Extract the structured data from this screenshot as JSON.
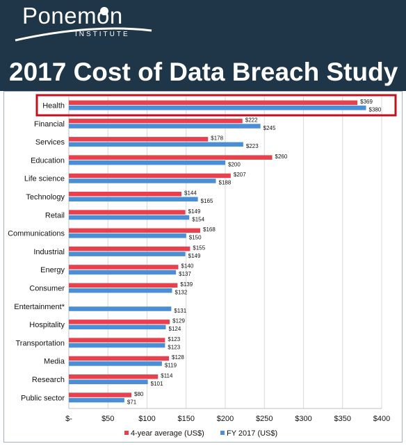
{
  "banner": {
    "logo_word": "Ponemon",
    "logo_sub": "INSTITUTE",
    "title": "2017 Cost of Data Breach Study"
  },
  "colors": {
    "banner_bg": "#1f3648",
    "series_avg": "#e8414d",
    "series_fy": "#4a8fd6",
    "highlight_box": "#c0121e"
  },
  "chart_data": {
    "type": "bar",
    "orientation": "horizontal",
    "categories": [
      "Health",
      "Financial",
      "Services",
      "Education",
      "Life science",
      "Technology",
      "Retail",
      "Communications",
      "Industrial",
      "Energy",
      "Consumer",
      "Entertainment*",
      "Hospitality",
      "Transportation",
      "Media",
      "Research",
      "Public sector"
    ],
    "series": [
      {
        "name": "4-year average (US$)",
        "values": [
          369,
          222,
          178,
          260,
          207,
          144,
          149,
          168,
          155,
          140,
          139,
          null,
          129,
          123,
          128,
          114,
          80
        ],
        "labels": [
          "$369",
          "$222",
          "$178",
          "$260",
          "$207",
          "$144",
          "$149",
          "$168",
          "$155",
          "$140",
          "$139",
          "",
          "$129",
          "$123",
          "$128",
          "$114",
          "$80"
        ]
      },
      {
        "name": "FY 2017 (US$)",
        "values": [
          380,
          245,
          223,
          200,
          188,
          165,
          154,
          150,
          149,
          137,
          132,
          131,
          124,
          123,
          119,
          101,
          71
        ],
        "labels": [
          "$380",
          "$245",
          "$223",
          "$200",
          "$188",
          "$165",
          "$154",
          "$150",
          "$149",
          "$137",
          "$132",
          "$131",
          "$124",
          "$123",
          "$119",
          "$101",
          "$71"
        ]
      }
    ],
    "xlim": [
      0,
      400
    ],
    "xticks": [
      0,
      50,
      100,
      150,
      200,
      250,
      300,
      350,
      400
    ],
    "xtick_labels": [
      "$-",
      "$50",
      "$100",
      "$150",
      "$200",
      "$250",
      "$300",
      "$350",
      "$400"
    ],
    "grid": true,
    "legend": "bottom",
    "highlighted_category": "Health"
  }
}
